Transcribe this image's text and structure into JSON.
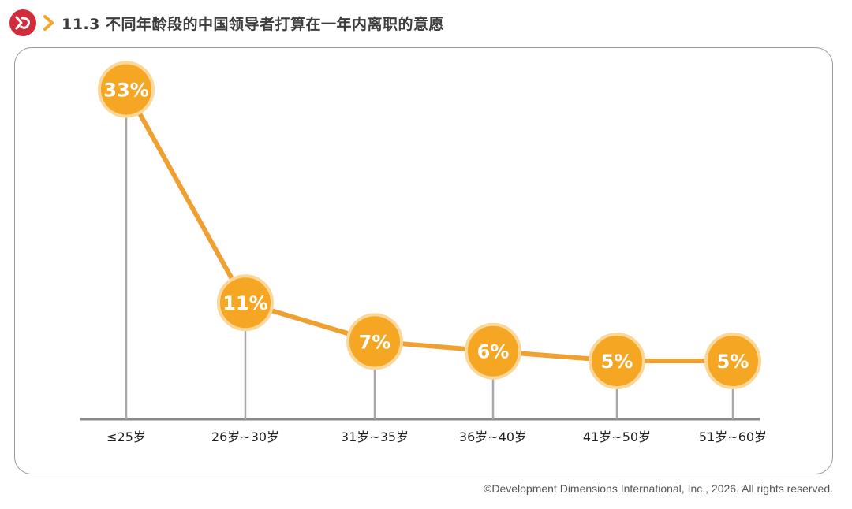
{
  "header": {
    "title": "11.3 不同年龄段的中国领导者打算在一年内离职的意愿",
    "logo_icon": "brand-logo-icon",
    "chevron_icon": "chevron-right-icon"
  },
  "colors": {
    "accent": "#f5a623",
    "line": "#f0a030",
    "ring": "#fbd79a",
    "stem": "#a8a8a8",
    "axis": "#8a8a8a",
    "logo": "#d22b3b"
  },
  "chart_data": {
    "type": "line",
    "categories": [
      "≤25岁",
      "26岁~30岁",
      "31岁~35岁",
      "36岁~40岁",
      "41岁~50岁",
      "51岁~60岁"
    ],
    "values": [
      33,
      11,
      7,
      6,
      5,
      5
    ],
    "value_labels": [
      "33%",
      "11%",
      "7%",
      "6%",
      "5%",
      "5%"
    ],
    "unit": "%",
    "ylim": [
      0,
      35
    ],
    "grid": false,
    "legend": "none"
  },
  "footer": {
    "copyright": "©Development Dimensions International, Inc., 2026. All rights reserved."
  }
}
